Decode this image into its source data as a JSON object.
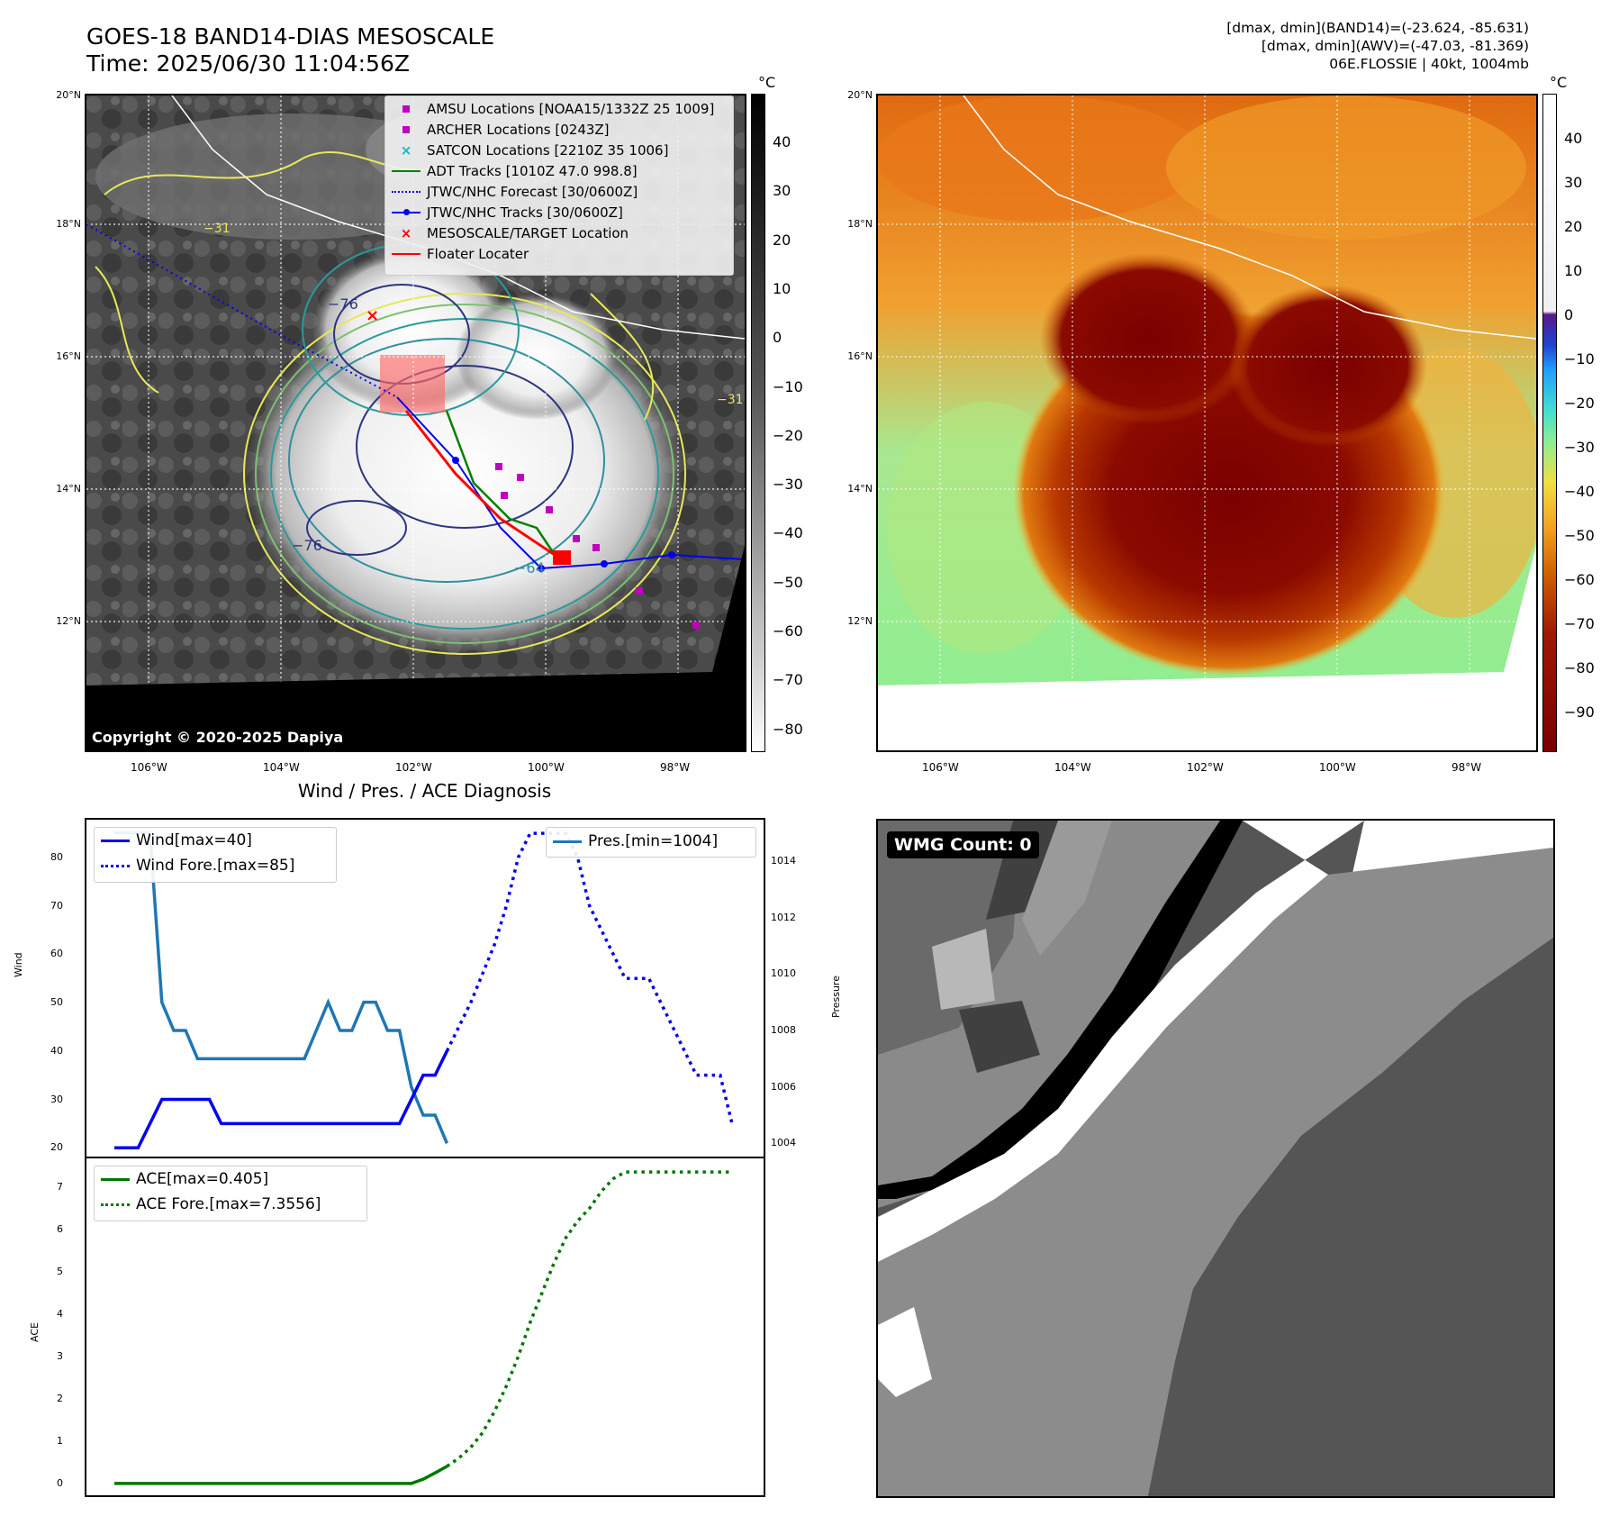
{
  "header": {
    "title_line1": "GOES-18 BAND14-DIAS MESOSCALE",
    "title_line2": "Time: 2025/06/30 11:04:56Z",
    "meta_line1": "[dmax, dmin](BAND14)=(-23.624, -85.631)",
    "meta_line2": "[dmax, dmin](AWV)=(-47.03, -81.369)",
    "meta_line3": "06E.FLOSSIE | 40kt, 1004mb"
  },
  "map_axes": {
    "lon_labels": [
      "106°W",
      "104°W",
      "102°W",
      "100°W",
      "98°W"
    ],
    "lat_labels": [
      "20°N",
      "18°N",
      "16°N",
      "14°N",
      "12°N"
    ],
    "copyright": "Copyright © 2020-2025 Dapiya"
  },
  "legend": {
    "amsu": "AMSU Locations [NOAA15/1332Z 25 1009]",
    "archer": "ARCHER Locations [0243Z]",
    "satcon": "SATCON Locations [2210Z 35 1006]",
    "adt": "ADT Tracks [1010Z 47.0 998.8]",
    "forecast": "JTWC/NHC Forecast [30/0600Z]",
    "tracks": "JTWC/NHC Tracks [30/0600Z]",
    "target": "MESOSCALE/TARGET Location",
    "floater": "Floater Locater"
  },
  "colorbar_gray": {
    "unit": "°C",
    "ticks": [
      "40",
      "30",
      "20",
      "10",
      "0",
      "−10",
      "−20",
      "−30",
      "−40",
      "−50",
      "−60",
      "−70",
      "−80"
    ]
  },
  "colorbar_awv": {
    "unit": "°C",
    "ticks": [
      "40",
      "30",
      "20",
      "10",
      "0",
      "−10",
      "−20",
      "−30",
      "−40",
      "−50",
      "−60",
      "−70",
      "−80",
      "−90"
    ]
  },
  "contour_labels": [
    "−76",
    "−76",
    "−64",
    "−31",
    "−31",
    "−64",
    "−76"
  ],
  "diagnosis": {
    "title": "Wind / Pres. / ACE Diagnosis",
    "wind_ylabel": "Wind",
    "pressure_ylabel": "Pressure",
    "ace_ylabel": "ACE",
    "legend_wind": "Wind[max=40]",
    "legend_wind_fore": "Wind Fore.[max=85]",
    "legend_pres": "Pres.[min=1004]",
    "legend_ace": "ACE[max=0.405]",
    "legend_ace_fore": "ACE Fore.[max=7.3556]",
    "wind_ticks": [
      "80",
      "70",
      "60",
      "50",
      "40",
      "30",
      "20"
    ],
    "pres_ticks": [
      "1014",
      "1012",
      "1010",
      "1008",
      "1006",
      "1004"
    ],
    "ace_ticks": [
      "7",
      "6",
      "5",
      "4",
      "3",
      "2",
      "1",
      "0"
    ]
  },
  "wmg": {
    "label": "WMG Count: 0"
  },
  "colors": {
    "wind": "#0000ee",
    "pressure": "#1f77b4",
    "ace": "#007700",
    "amsu": "#c000c0",
    "satcon": "#00c0c0",
    "adt": "#008000",
    "floater": "#ff0000"
  },
  "chart_data": [
    {
      "type": "line",
      "title": "Wind / Pres. / ACE Diagnosis",
      "ylabel": "Wind",
      "ylim": [
        18,
        88
      ],
      "series": [
        {
          "name": "Wind[max=40]",
          "x": [
            0,
            1,
            2,
            3,
            4,
            5,
            6,
            7,
            8,
            9,
            10,
            11,
            12,
            13,
            14,
            15,
            16,
            17,
            18,
            19,
            20,
            21,
            22,
            23,
            24,
            25,
            26,
            27,
            28
          ],
          "values": [
            20,
            20,
            20,
            25,
            30,
            30,
            30,
            30,
            30,
            25,
            25,
            25,
            25,
            25,
            25,
            25,
            25,
            25,
            25,
            25,
            25,
            25,
            25,
            25,
            25,
            30,
            35,
            35,
            40
          ]
        },
        {
          "name": "Wind Fore.[max=85]",
          "x": [
            28,
            29,
            30,
            31,
            32,
            33,
            34,
            35,
            36,
            37,
            38,
            39,
            40,
            41,
            42,
            43,
            44,
            45,
            46,
            47,
            48,
            49,
            50,
            51,
            52
          ],
          "values": [
            40,
            45,
            50,
            56,
            62,
            70,
            80,
            85,
            85,
            85,
            85,
            80,
            70,
            65,
            60,
            55,
            55,
            55,
            50,
            45,
            40,
            35,
            35,
            35,
            25
          ]
        }
      ]
    },
    {
      "type": "line",
      "ylabel": "Pressure",
      "ylim": [
        1003.5,
        1015.5
      ],
      "series": [
        {
          "name": "Pres.[min=1004]",
          "x": [
            0,
            1,
            2,
            3,
            4,
            5,
            6,
            7,
            8,
            9,
            10,
            11,
            12,
            13,
            14,
            15,
            16,
            17,
            18,
            19,
            20,
            21,
            22,
            23,
            24,
            25,
            26,
            27,
            28
          ],
          "values": [
            1015,
            1015,
            1015,
            1015,
            1009,
            1008,
            1008,
            1007,
            1007,
            1007,
            1007,
            1007,
            1007,
            1007,
            1007,
            1007,
            1007,
            1008,
            1009,
            1008,
            1008,
            1009,
            1009,
            1008,
            1008,
            1006,
            1005,
            1005,
            1004
          ]
        }
      ]
    },
    {
      "type": "line",
      "ylabel": "ACE",
      "ylim": [
        -0.3,
        7.7
      ],
      "series": [
        {
          "name": "ACE[max=0.405]",
          "x": [
            0,
            2,
            4,
            6,
            8,
            10,
            12,
            14,
            16,
            18,
            20,
            22,
            24,
            25,
            26,
            27,
            28
          ],
          "values": [
            0,
            0,
            0,
            0,
            0,
            0,
            0,
            0,
            0,
            0,
            0,
            0,
            0,
            0,
            0.1,
            0.25,
            0.405
          ]
        },
        {
          "name": "ACE Fore.[max=7.3556]",
          "x": [
            28,
            29,
            30,
            31,
            32,
            33,
            34,
            35,
            36,
            37,
            38,
            39,
            40,
            41,
            42,
            43,
            44,
            45,
            46,
            47,
            48,
            50,
            52
          ],
          "values": [
            0.405,
            0.6,
            0.85,
            1.2,
            1.7,
            2.3,
            3.0,
            3.8,
            4.5,
            5.2,
            5.8,
            6.2,
            6.5,
            6.9,
            7.2,
            7.3556,
            7.3556,
            7.3556,
            7.3556,
            7.3556,
            7.3556,
            7.3556,
            7.3556
          ]
        }
      ]
    }
  ]
}
